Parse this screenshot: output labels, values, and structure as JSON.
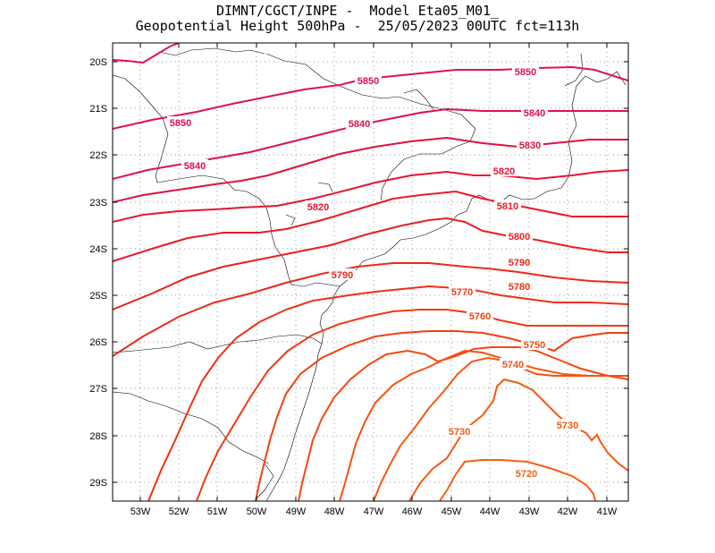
{
  "title": {
    "line1": "DIMNT/CGCT/INPE -  Model Eta05_M01_",
    "line2": "Geopotential Height 500hPa -  25/05/2023 00UTC fct=113h"
  },
  "axes": {
    "lon_ticks": [
      "53W",
      "52W",
      "51W",
      "50W",
      "49W",
      "48W",
      "47W",
      "46W",
      "45W",
      "44W",
      "43W",
      "42W",
      "41W"
    ],
    "lat_ticks": [
      "20S",
      "21S",
      "22S",
      "23S",
      "24S",
      "25S",
      "26S",
      "27S",
      "28S",
      "29S"
    ]
  },
  "contours": [
    {
      "value": "5850",
      "color": "#e0105a"
    },
    {
      "value": "5840",
      "color": "#e0104a"
    },
    {
      "value": "5830",
      "color": "#e01040"
    },
    {
      "value": "5820",
      "color": "#e81530"
    },
    {
      "value": "5810",
      "color": "#ea1a28"
    },
    {
      "value": "5800",
      "color": "#ec1e20"
    },
    {
      "value": "5790",
      "color": "#ee2818"
    },
    {
      "value": "5780",
      "color": "#f03014"
    },
    {
      "value": "5770",
      "color": "#f23812"
    },
    {
      "value": "5760",
      "color": "#f34010"
    },
    {
      "value": "5750",
      "color": "#f44810"
    },
    {
      "value": "5740",
      "color": "#f55010"
    },
    {
      "value": "5730",
      "color": "#f65810"
    },
    {
      "value": "5720",
      "color": "#f66010"
    }
  ],
  "labels": [
    {
      "text": "5850",
      "color": "#e0105a"
    },
    {
      "text": "5850",
      "color": "#e0105a"
    },
    {
      "text": "5850",
      "color": "#e0105a"
    },
    {
      "text": "5840",
      "color": "#e0104a"
    },
    {
      "text": "5840",
      "color": "#e0104a"
    },
    {
      "text": "5840",
      "color": "#e0104a"
    },
    {
      "text": "5830",
      "color": "#e01040"
    },
    {
      "text": "5820",
      "color": "#e81530"
    },
    {
      "text": "5820",
      "color": "#e81530"
    },
    {
      "text": "5810",
      "color": "#ea1a28"
    },
    {
      "text": "5800",
      "color": "#ec1e20"
    },
    {
      "text": "5790",
      "color": "#ee2818"
    },
    {
      "text": "5790",
      "color": "#ee2818"
    },
    {
      "text": "5780",
      "color": "#f03014"
    },
    {
      "text": "5770",
      "color": "#f23812"
    },
    {
      "text": "5760",
      "color": "#f34010"
    },
    {
      "text": "5750",
      "color": "#f44810"
    },
    {
      "text": "5740",
      "color": "#f55010"
    },
    {
      "text": "5730",
      "color": "#f65810"
    },
    {
      "text": "5730",
      "color": "#f65810"
    },
    {
      "text": "5720",
      "color": "#f66010"
    }
  ]
}
